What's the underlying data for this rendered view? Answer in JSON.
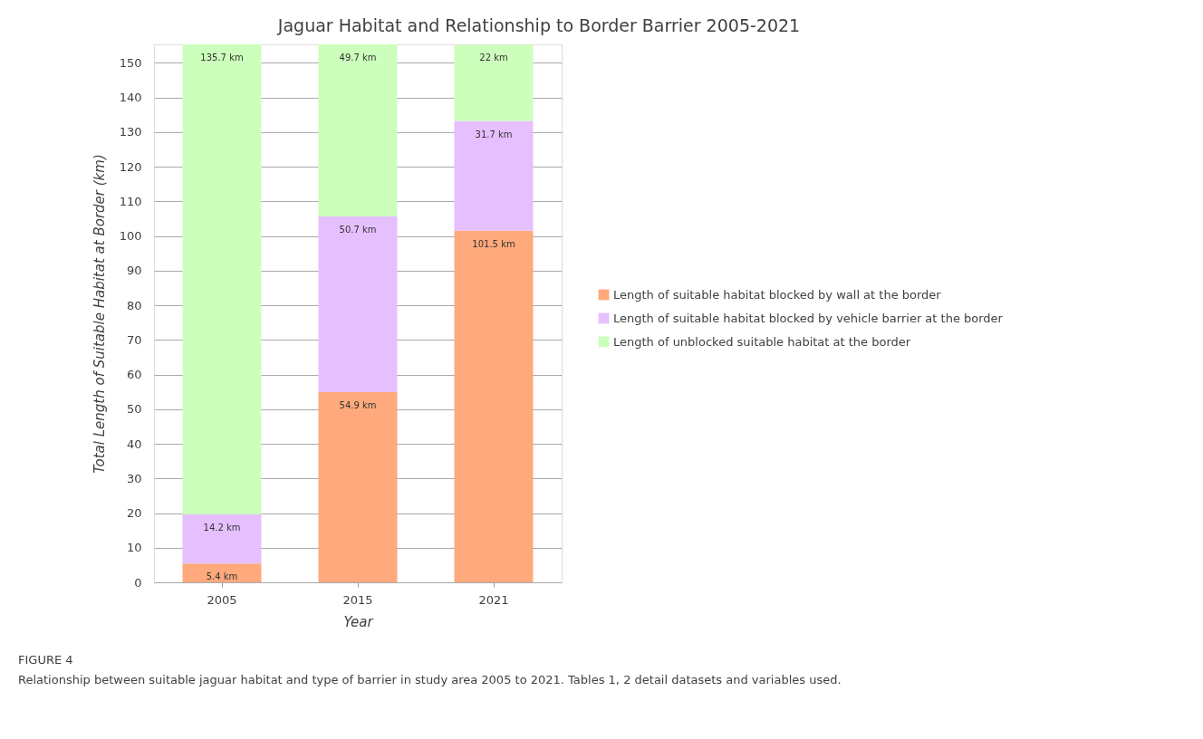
{
  "chart_data": {
    "type": "bar",
    "stacked": true,
    "title": "Jaguar Habitat and Relationship to Border Barrier 2005-2021",
    "xlabel": "Year",
    "ylabel": "Total Length of Suitable Habitat at Border (km)",
    "categories": [
      "2005",
      "2015",
      "2021"
    ],
    "series": [
      {
        "name": "Length of suitable habitat blocked by wall at the border",
        "color": "#ffa97d",
        "values": [
          5.4,
          54.9,
          101.5
        ],
        "value_labels": [
          "5.4 km",
          "54.9 km",
          "101.5 km"
        ]
      },
      {
        "name": "Length of suitable habitat blocked by vehicle barrier at the border",
        "color": "#e6bfff",
        "values": [
          14.2,
          50.7,
          31.7
        ],
        "value_labels": [
          "14.2 km",
          "50.7 km",
          "31.7 km"
        ]
      },
      {
        "name": "Length of unblocked suitable habitat at the border",
        "color": "#ccffbb",
        "values": [
          135.7,
          49.7,
          22
        ],
        "value_labels": [
          "135.7 km",
          "49.7 km",
          "22 km"
        ]
      }
    ],
    "ylim": [
      0,
      155.3
    ],
    "yticks": [
      0,
      10,
      20,
      30,
      40,
      50,
      60,
      70,
      80,
      90,
      100,
      110,
      120,
      130,
      140,
      150
    ],
    "grid": "y",
    "legend": "right",
    "annotations": [
      "FIGURE 4",
      "Relationship between suitable jaguar habitat and type of barrier in study area 2005 to 2021. Tables 1, 2 detail datasets and variables used."
    ]
  }
}
